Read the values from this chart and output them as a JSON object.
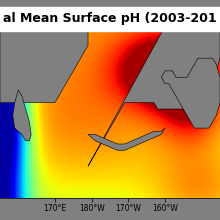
{
  "title": "al Mean Surface pH (2003-201",
  "title_fontsize": 9.0,
  "title_color": "black",
  "title_bg": "white",
  "lon_min": 155,
  "lon_max": 215,
  "lat_min": 43,
  "lat_max": 70,
  "lon_ticks": [
    170,
    180,
    190,
    200
  ],
  "lon_tick_labels": [
    "170°E",
    "180°W",
    "170°W",
    "160°W"
  ],
  "colormap": "jet",
  "ph_min": 7.95,
  "ph_max": 8.25,
  "land_color": "#808080",
  "bg_color": "#808080",
  "figsize": [
    2.2,
    2.2
  ],
  "dpi": 100
}
